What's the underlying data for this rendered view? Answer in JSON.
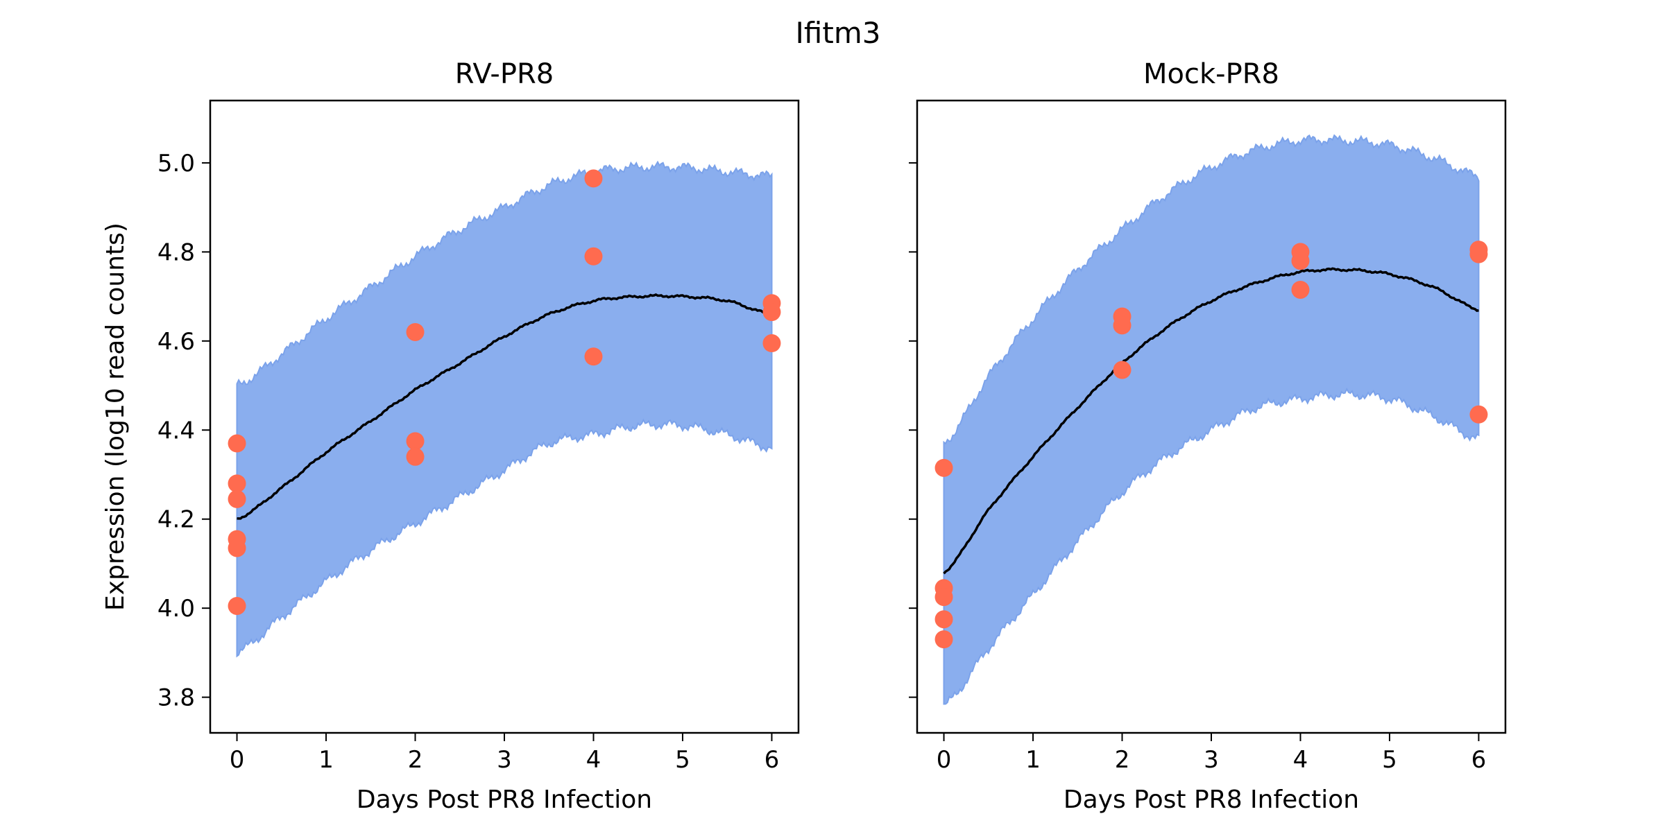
{
  "figure": {
    "title": "Ifitm3"
  },
  "colors": {
    "band": "#8aaeee",
    "band_edge": "#7ba2ea",
    "point": "#ff6b4f",
    "line": "#000000"
  },
  "chart_data": [
    {
      "type": "line",
      "title": "RV-PR8",
      "xlabel": "Days Post PR8 Infection",
      "ylabel": "Expression (log10 read counts)",
      "xlim": [
        -0.3,
        6.3
      ],
      "ylim": [
        3.72,
        5.14
      ],
      "xticks": [
        0,
        1,
        2,
        3,
        4,
        5,
        6
      ],
      "yticks": [
        3.8,
        4.0,
        4.2,
        4.4,
        4.6,
        4.8,
        5.0
      ],
      "legend": "none",
      "grid": false,
      "mean_curve": {
        "x": [
          0,
          0.5,
          1,
          1.5,
          2,
          2.5,
          3,
          3.5,
          4,
          4.5,
          5,
          5.5,
          6
        ],
        "y": [
          4.2,
          4.27,
          4.35,
          4.42,
          4.49,
          4.55,
          4.61,
          4.66,
          4.69,
          4.7,
          4.7,
          4.69,
          4.66
        ]
      },
      "interval": {
        "x": [
          0,
          0.5,
          1,
          1.5,
          2,
          2.5,
          3,
          3.5,
          4,
          4.5,
          5,
          5.5,
          6
        ],
        "upper": [
          4.5,
          4.57,
          4.65,
          4.72,
          4.79,
          4.85,
          4.9,
          4.95,
          4.98,
          4.99,
          4.99,
          4.98,
          4.97
        ],
        "lower": [
          3.9,
          3.98,
          4.06,
          4.13,
          4.19,
          4.25,
          4.31,
          4.37,
          4.39,
          4.41,
          4.41,
          4.39,
          4.36
        ]
      },
      "points": {
        "x": [
          0,
          0,
          0,
          0,
          0,
          0,
          2,
          2,
          2,
          4,
          4,
          4,
          6,
          6,
          6
        ],
        "y": [
          4.37,
          4.28,
          4.245,
          4.155,
          4.135,
          4.005,
          4.62,
          4.375,
          4.34,
          4.965,
          4.79,
          4.565,
          4.685,
          4.665,
          4.595
        ]
      }
    },
    {
      "type": "line",
      "title": "Mock-PR8",
      "xlabel": "Days Post PR8 Infection",
      "ylabel": "",
      "xlim": [
        -0.3,
        6.3
      ],
      "ylim": [
        3.72,
        5.14
      ],
      "xticks": [
        0,
        1,
        2,
        3,
        4,
        5,
        6
      ],
      "yticks": [
        3.8,
        4.0,
        4.2,
        4.4,
        4.6,
        4.8,
        5.0
      ],
      "legend": "none",
      "grid": false,
      "mean_curve": {
        "x": [
          0,
          0.5,
          1,
          1.5,
          2,
          2.5,
          3,
          3.5,
          4,
          4.5,
          5,
          5.5,
          6
        ],
        "y": [
          4.08,
          4.22,
          4.34,
          4.45,
          4.55,
          4.63,
          4.69,
          4.73,
          4.755,
          4.76,
          4.75,
          4.72,
          4.67
        ]
      },
      "interval": {
        "x": [
          0,
          0.5,
          1,
          1.5,
          2,
          2.5,
          3,
          3.5,
          4,
          4.5,
          5,
          5.5,
          6
        ],
        "upper": [
          4.37,
          4.52,
          4.65,
          4.76,
          4.85,
          4.93,
          4.99,
          5.03,
          5.05,
          5.05,
          5.04,
          5.01,
          4.97
        ],
        "lower": [
          3.78,
          3.91,
          4.03,
          4.15,
          4.26,
          4.34,
          4.4,
          4.45,
          4.47,
          4.48,
          4.47,
          4.43,
          4.38
        ]
      },
      "points": {
        "x": [
          0,
          0,
          0,
          0,
          0,
          2,
          2,
          2,
          4,
          4,
          4,
          6,
          6,
          6
        ],
        "y": [
          4.315,
          4.045,
          4.025,
          3.975,
          3.93,
          4.655,
          4.635,
          4.535,
          4.8,
          4.78,
          4.715,
          4.805,
          4.795,
          4.435
        ]
      }
    }
  ]
}
